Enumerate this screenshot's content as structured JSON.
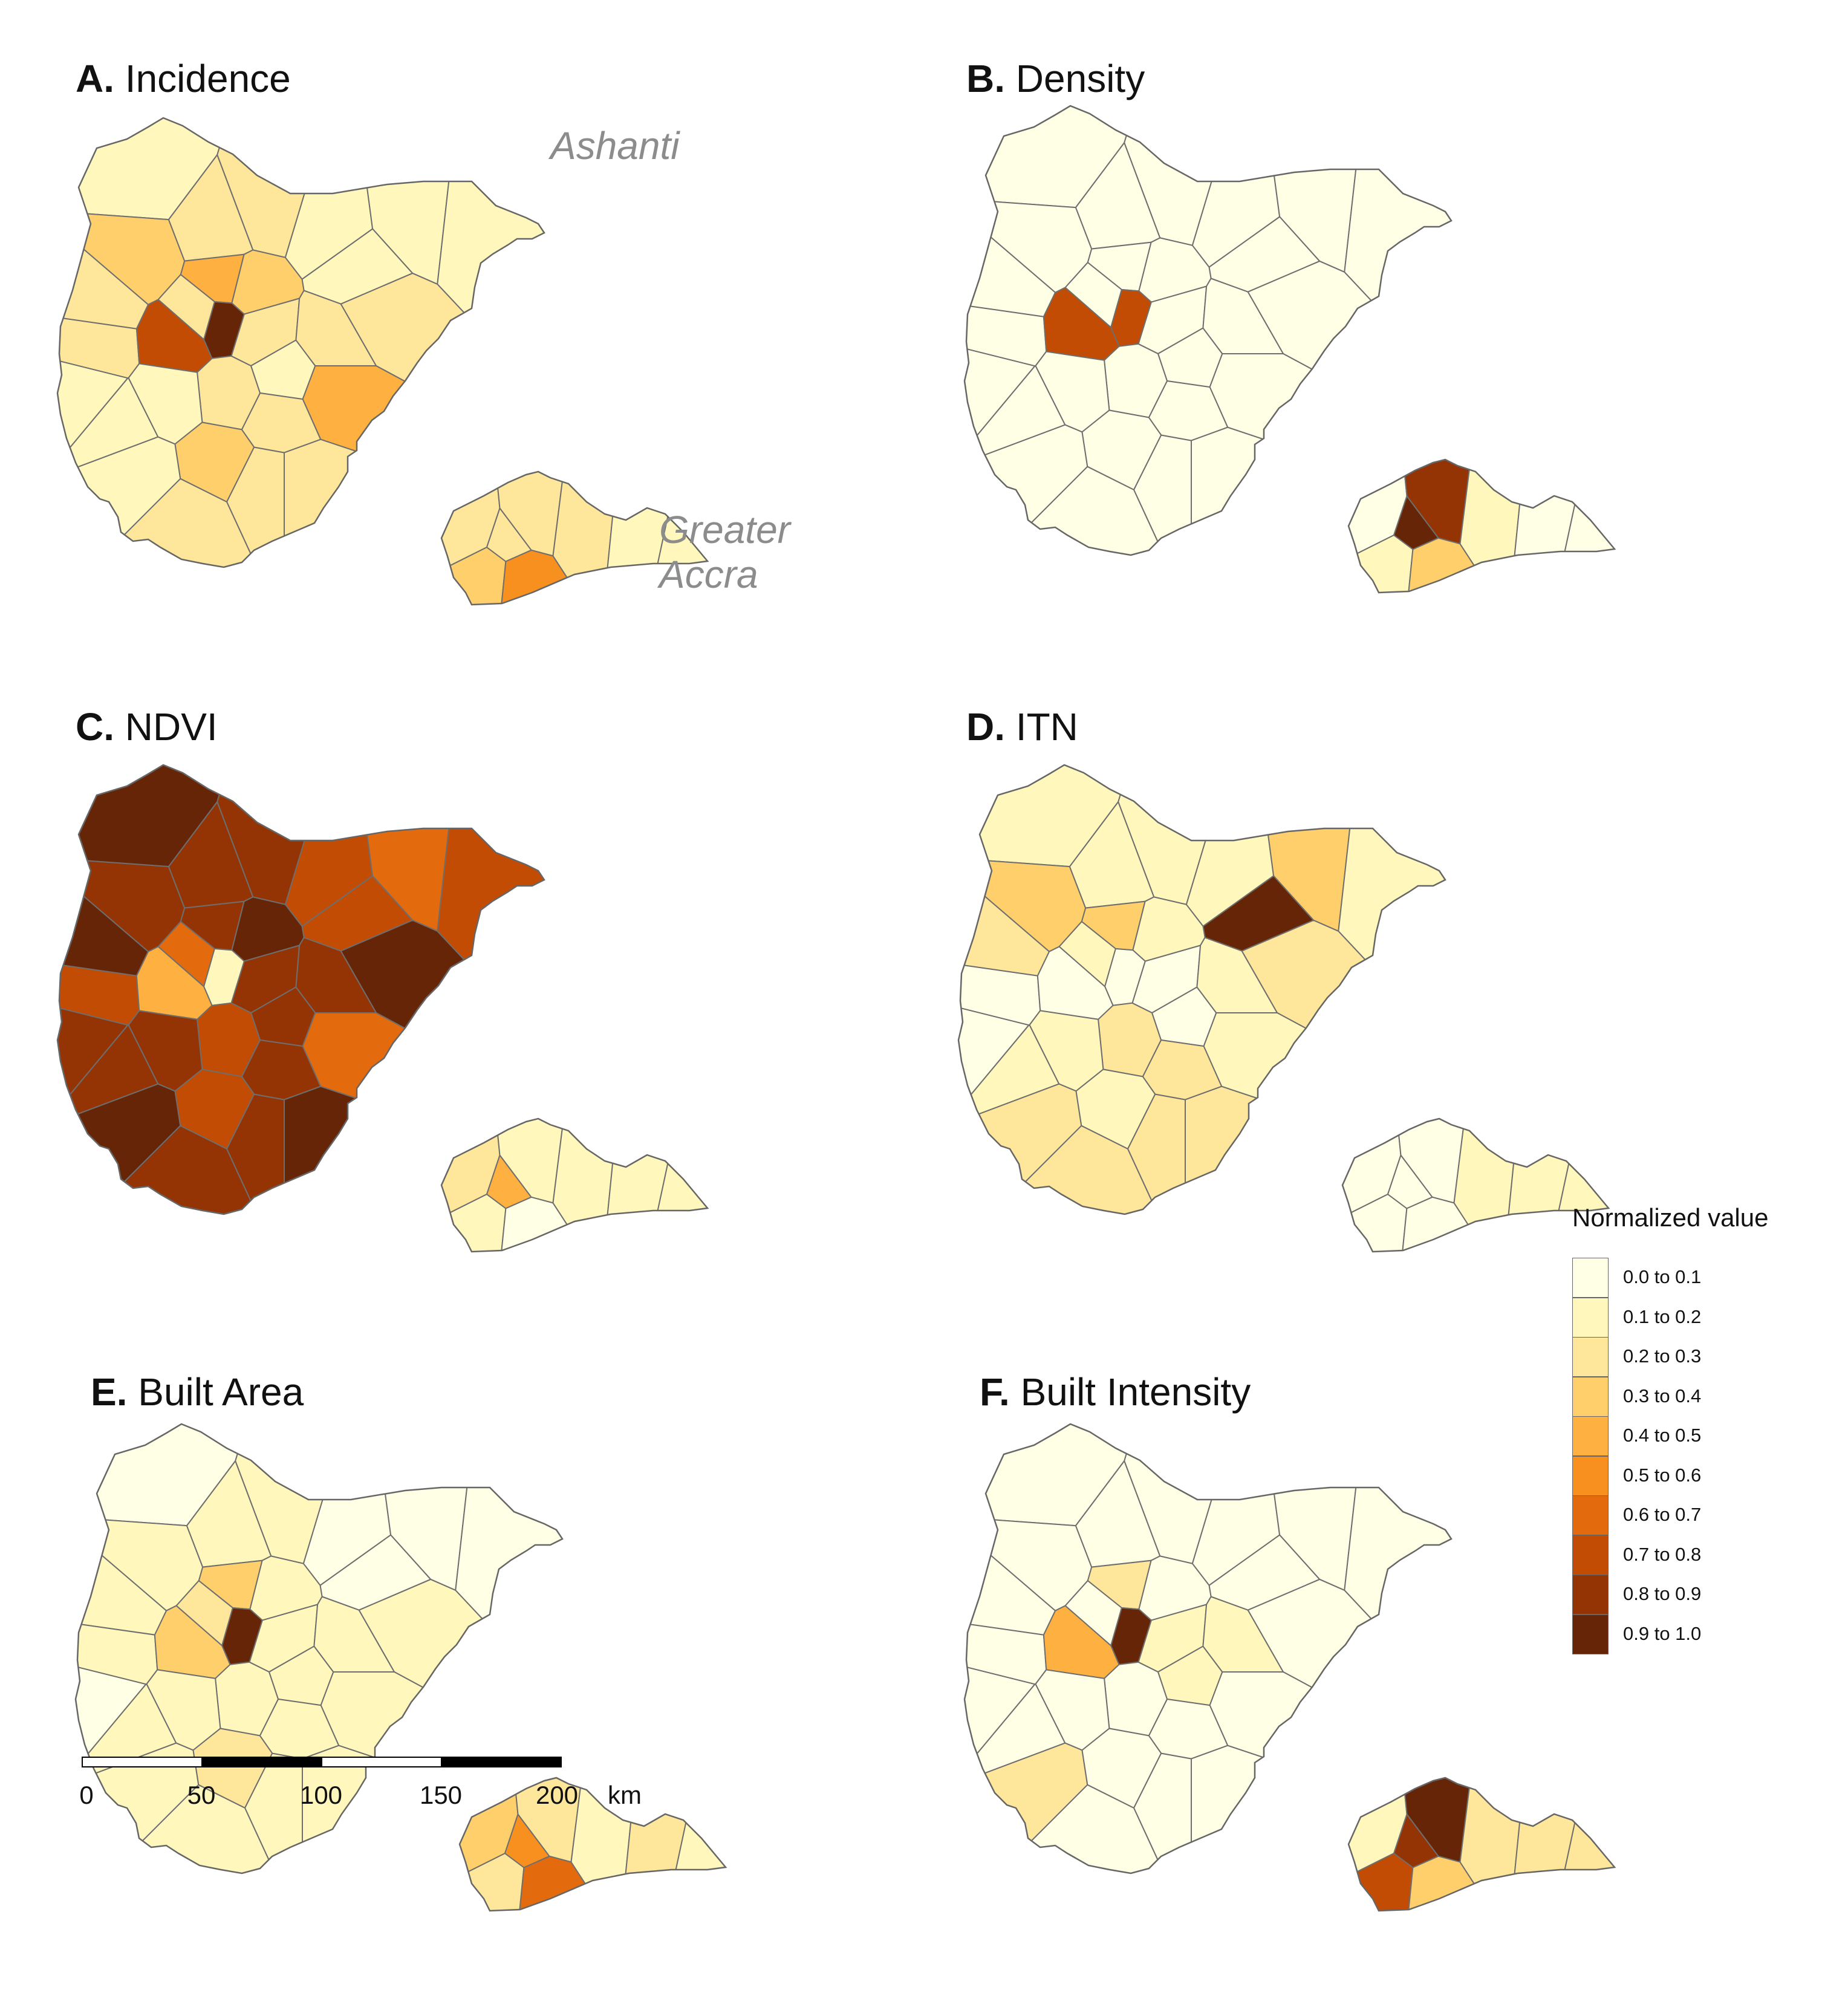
{
  "panels": [
    {
      "letter": "A.",
      "name": "Incidence",
      "ashanti": [
        1,
        1,
        1,
        1,
        1,
        2,
        3,
        2,
        2,
        1,
        1,
        2,
        4,
        2,
        3,
        2,
        9,
        7,
        1,
        2,
        2,
        4,
        2,
        2,
        1,
        1,
        3,
        2,
        2,
        2
      ],
      "accra": [
        2,
        3,
        2,
        2,
        5,
        2,
        1,
        1
      ]
    },
    {
      "letter": "B.",
      "name": "Density",
      "ashanti": [
        0,
        0,
        0,
        0,
        0,
        0,
        0,
        0,
        0,
        0,
        0,
        0,
        0,
        0,
        0,
        0,
        7,
        7,
        0,
        0,
        0,
        0,
        0,
        0,
        0,
        0,
        0,
        0,
        0,
        0
      ],
      "accra": [
        0,
        1,
        9,
        8,
        3,
        1,
        0,
        0
      ]
    },
    {
      "letter": "C.",
      "name": "NDVI",
      "ashanti": [
        7,
        6,
        7,
        7,
        9,
        8,
        8,
        9,
        7,
        8,
        8,
        8,
        8,
        6,
        9,
        8,
        1,
        4,
        8,
        8,
        9,
        6,
        8,
        7,
        8,
        9,
        7,
        8,
        8,
        9
      ],
      "accra": [
        2,
        1,
        4,
        1,
        0,
        1,
        1,
        1
      ]
    },
    {
      "letter": "D.",
      "name": "ITN",
      "ashanti": [
        1,
        3,
        1,
        9,
        1,
        1,
        3,
        2,
        0,
        0,
        1,
        1,
        3,
        1,
        1,
        0,
        0,
        0,
        0,
        1,
        2,
        1,
        2,
        2,
        1,
        2,
        1,
        2,
        2,
        2
      ],
      "accra": [
        0,
        0,
        0,
        0,
        0,
        1,
        1,
        1
      ]
    },
    {
      "letter": "E.",
      "name": "Built Area",
      "ashanti": [
        0,
        0,
        0,
        0,
        0,
        1,
        1,
        1,
        1,
        0,
        1,
        1,
        3,
        2,
        1,
        1,
        9,
        3,
        1,
        1,
        1,
        1,
        1,
        1,
        1,
        1,
        2,
        1,
        1,
        1
      ],
      "accra": [
        3,
        2,
        5,
        2,
        6,
        1,
        2,
        1
      ]
    },
    {
      "letter": "F.",
      "name": "Built Intensity",
      "ashanti": [
        0,
        0,
        0,
        0,
        0,
        0,
        0,
        0,
        0,
        0,
        0,
        0,
        2,
        0,
        0,
        1,
        9,
        4,
        1,
        1,
        0,
        0,
        0,
        0,
        0,
        2,
        0,
        0,
        0,
        0
      ],
      "accra": [
        1,
        7,
        8,
        9,
        3,
        2,
        2,
        2
      ]
    }
  ],
  "region_labels": {
    "ashanti": "Ashanti",
    "accra_line1": "Greater",
    "accra_line2": "Accra"
  },
  "legend": {
    "title": "Normalized value",
    "classes": [
      {
        "label": "0.0 to 0.1",
        "color": "#FFFFE5"
      },
      {
        "label": "0.1 to 0.2",
        "color": "#FFF7BC"
      },
      {
        "label": "0.2 to 0.3",
        "color": "#FEE69A"
      },
      {
        "label": "0.3 to 0.4",
        "color": "#FECF6A"
      },
      {
        "label": "0.4 to 0.5",
        "color": "#FEB040"
      },
      {
        "label": "0.5 to 0.6",
        "color": "#F8901F"
      },
      {
        "label": "0.6 to 0.7",
        "color": "#E36B0E"
      },
      {
        "label": "0.7 to 0.8",
        "color": "#C24C03"
      },
      {
        "label": "0.8 to 0.9",
        "color": "#943404"
      },
      {
        "label": "0.9 to 1.0",
        "color": "#662506"
      }
    ]
  },
  "scalebar": {
    "ticks": [
      "0",
      "50",
      "100",
      "150",
      "200"
    ],
    "unit": "km"
  }
}
